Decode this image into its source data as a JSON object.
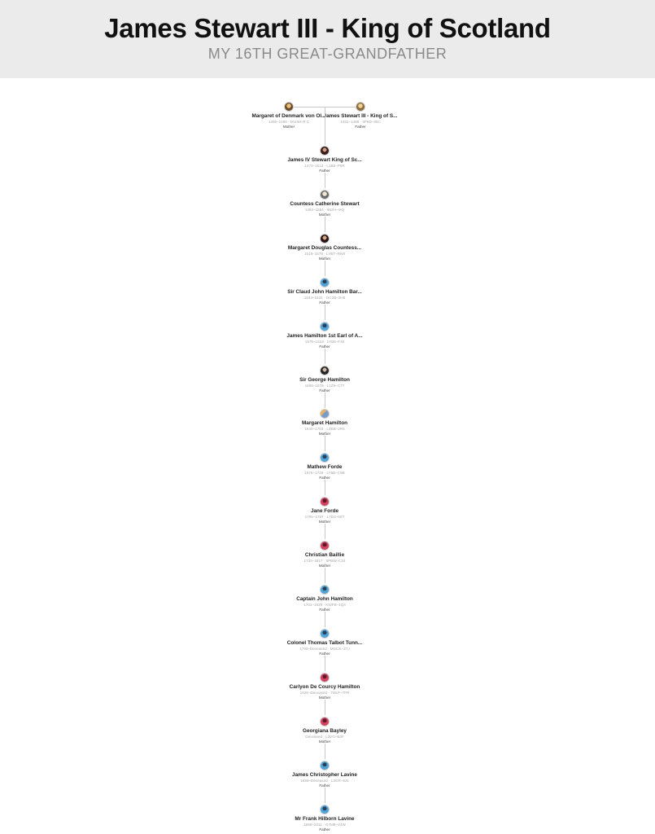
{
  "header": {
    "title": "James Stewart III - King of Scotland",
    "subtitle": "MY 16TH GREAT-GRANDFATHER"
  },
  "parents": [
    {
      "name": "Margaret of Denmark von Ol...",
      "dates": "1456–1486 · M10M–R C",
      "relation": "Mother",
      "avatar": "photo1"
    },
    {
      "name": "James Stewart III - King of S...",
      "dates": "1451–1488 · 4P6D–85C",
      "relation": "Father",
      "avatar": "photo2"
    }
  ],
  "lineage": [
    {
      "name": "James IV Stewart King of Sc...",
      "dates": "1473–1513 · L1B6–P6R",
      "relation": "Father",
      "avatar": "photo3"
    },
    {
      "name": "Countess Catherine Stewart",
      "dates": "1492–1554 · 962H–4•Q",
      "relation": "Mother",
      "avatar": "photo4"
    },
    {
      "name": "Margaret Douglas Countess...",
      "dates": "1515–1578 · LH5T–RN9",
      "relation": "Mother",
      "avatar": "photo5"
    },
    {
      "name": "Sir Claud John Hamilton Bar...",
      "dates": "1543–1621 · OC2B–2H5",
      "relation": "Father",
      "avatar": "male"
    },
    {
      "name": "James Hamilton 1st Earl of A...",
      "dates": "1575–1618 · LYB6–F48",
      "relation": "Father",
      "avatar": "male"
    },
    {
      "name": "Sir George Hamilton",
      "dates": "1608–1679 · L1Z9–C7T",
      "relation": "Father",
      "avatar": "photo6"
    },
    {
      "name": "Margaret Hamilton",
      "dates": "1640–1703 · L4BB–2R5",
      "relation": "Mother",
      "avatar": "photo7"
    },
    {
      "name": "Mathew Forde",
      "dates": "1675–1729 · LY5B–C9B",
      "relation": "Father",
      "avatar": "male"
    },
    {
      "name": "Jane Forde",
      "dates": "1705–1787 · L7D3–9ZT",
      "relation": "Mother",
      "avatar": "female"
    },
    {
      "name": "Christian Baillie",
      "dates": "1733–1817 · 9PBW–C24",
      "relation": "Mother",
      "avatar": "female"
    },
    {
      "name": "Captain John Hamilton",
      "dates": "1761–1829 · KWFB–1Q4",
      "relation": "Father",
      "avatar": "male"
    },
    {
      "name": "Colonel Thomas Talbot Tunn...",
      "dates": "1790–Deceased · MGCK–Z7J",
      "relation": "Father",
      "avatar": "male"
    },
    {
      "name": "Carlyon De Courcy Hamilton",
      "dates": "1826–Deceased · 7MLF–TFR",
      "relation": "Mother",
      "avatar": "female"
    },
    {
      "name": "Georgiana Bayley",
      "dates": "Deceased · L3VG–B3F",
      "relation": "Mother",
      "avatar": "female"
    },
    {
      "name": "James Christopher Lavine",
      "dates": "1859–Deceased · L3GR–8J4",
      "relation": "Father",
      "avatar": "male"
    },
    {
      "name": "Mr Frank Hilborn Lavine",
      "dates": "1898–2011 · G7M9–V4W",
      "relation": "Father",
      "avatar": "male"
    }
  ]
}
